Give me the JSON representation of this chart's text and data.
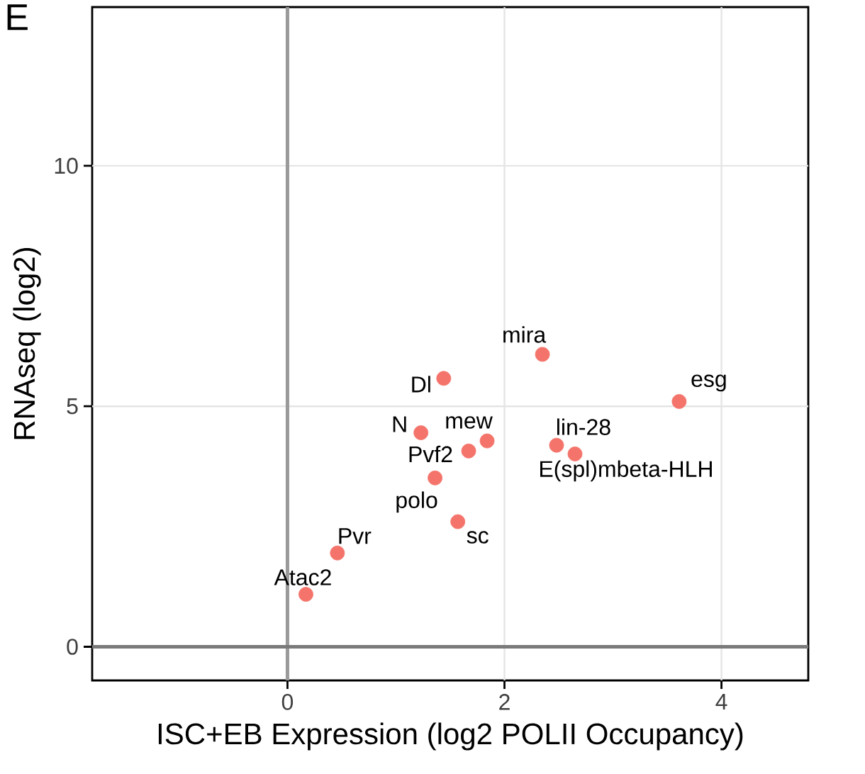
{
  "chart_data": {
    "type": "scatter",
    "xlabel": "ISC+EB Expression (log2 POLII Occupancy)",
    "ylabel": "RNAseq (log2)",
    "x": [
      1.44,
      1.23,
      1.84,
      1.67,
      1.36,
      1.57,
      2.35,
      2.48,
      2.65,
      3.61,
      0.46,
      0.17
    ],
    "values": [
      5.58,
      4.45,
      4.28,
      4.07,
      3.51,
      2.6,
      6.08,
      4.19,
      4.01,
      5.1,
      1.95,
      1.09
    ],
    "color": "#f4746b",
    "marker": "circle",
    "xlim": [
      -1.8,
      4.8
    ],
    "ylim": [
      -0.7,
      13.3
    ],
    "xticks": [
      0,
      2,
      4
    ],
    "yticks": [
      0,
      5,
      10
    ],
    "grid": true,
    "ref_lines": [
      {
        "axis": "x",
        "value": 0,
        "color": "#9a9a9a"
      },
      {
        "axis": "y",
        "value": 0,
        "color": "#7a7a7a"
      }
    ],
    "annotations": [
      "E",
      {
        "text": "Dl",
        "x": 1.44,
        "y": 5.58
      },
      {
        "text": "N",
        "x": 1.23,
        "y": 4.45
      },
      {
        "text": "mew",
        "x": 1.84,
        "y": 4.28
      },
      {
        "text": "Pvf2",
        "x": 1.67,
        "y": 4.07
      },
      {
        "text": "polo",
        "x": 1.36,
        "y": 3.51
      },
      {
        "text": "sc",
        "x": 1.57,
        "y": 2.6
      },
      {
        "text": "mira",
        "x": 2.35,
        "y": 6.08
      },
      {
        "text": "lin-28",
        "x": 2.48,
        "y": 4.19
      },
      {
        "text": "E(spl)mbeta-HLH",
        "x": 2.65,
        "y": 4.01
      },
      {
        "text": "esg",
        "x": 3.61,
        "y": 5.1
      },
      {
        "text": "Pvr",
        "x": 0.46,
        "y": 1.95
      },
      {
        "text": "Atac2",
        "x": 0.17,
        "y": 1.09
      }
    ]
  }
}
